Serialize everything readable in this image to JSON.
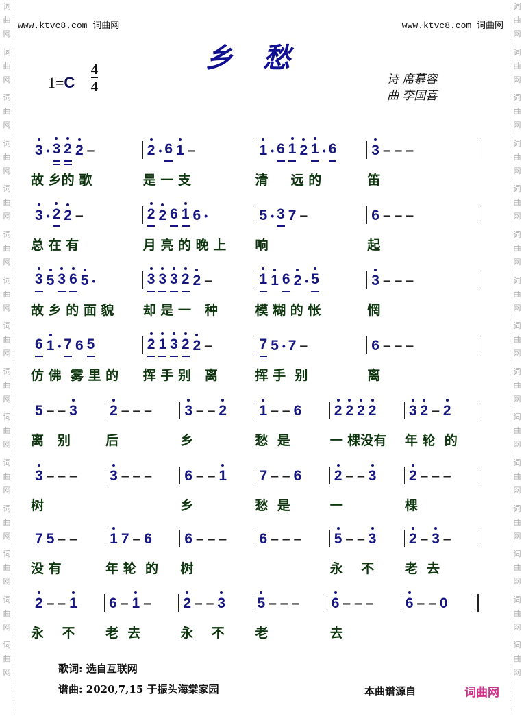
{
  "watermark": "词曲网",
  "site_left": "www.ktvc8.com 词曲网",
  "site_right": "www.ktvc8.com 词曲网",
  "title": "乡愁",
  "key": {
    "prefix": "1=",
    "tonic": "C"
  },
  "meter": {
    "top": "4",
    "bottom": "4"
  },
  "credits": {
    "lyrics": "诗 席慕容",
    "music": "曲 李国喜"
  },
  "colors": {
    "notes": "#161680",
    "lyrics": "#0e360e",
    "source_site": "#d0308a"
  },
  "notation_legend": "^ = high octave dot, _ = underline, = = double underline, . = augmentation dot, - = dash",
  "rows": [
    {
      "measures": [
        [
          "3^",
          ".",
          "3^=",
          "2^=",
          "2^",
          "-"
        ],
        [
          "2^",
          ".",
          "6_",
          "1^",
          "-"
        ],
        [
          "1^",
          ".",
          "6_",
          "1^_",
          "2^",
          "1^_",
          ".",
          "6_"
        ],
        [
          "3^",
          "-",
          "-",
          "-"
        ]
      ],
      "lyrics": [
        "故 乡的 歌",
        "是 一 支",
        "清     远 的",
        "笛"
      ]
    },
    {
      "measures": [
        [
          "3^",
          ".",
          "2^_",
          "2^",
          "-"
        ],
        [
          "2^_",
          "2^",
          "6_",
          "1^_",
          "6",
          "."
        ],
        [
          "5",
          ".",
          "3_",
          "7",
          "-"
        ],
        [
          "6",
          "-",
          "-",
          "-"
        ]
      ],
      "lyrics": [
        "总 在 有",
        "月 亮 的 晚 上",
        "响",
        "起"
      ]
    },
    {
      "measures": [
        [
          "3^_",
          "5^",
          "3^_",
          "6^_",
          "5^",
          "."
        ],
        [
          "3^_",
          "3^_",
          "3^_",
          "2^_",
          "2^",
          "-"
        ],
        [
          "1^_",
          "1^",
          "6_",
          "2^",
          ".",
          "5^_"
        ],
        [
          "3^",
          "-",
          "-",
          "-"
        ]
      ],
      "lyrics": [
        "故 乡 的 面 貌",
        "却 是 一   种",
        "模 糊 的 怅",
        "惘"
      ]
    },
    {
      "measures": [
        [
          "6_",
          "1^",
          ".",
          "7_",
          "6",
          "5_"
        ],
        [
          "2^_",
          "1^_",
          "3^_",
          "2^_",
          "2^",
          "-"
        ],
        [
          "7_",
          "5",
          ".",
          "7",
          "-"
        ],
        [
          "6",
          "-",
          "-",
          "-"
        ]
      ],
      "lyrics": [
        "仿 佛  雾 里 的",
        "挥 手 别   离",
        "挥 手  别",
        "离"
      ]
    },
    {
      "measures": [
        [
          "5",
          "-",
          "-",
          "3^"
        ],
        [
          "2^",
          "-",
          "-",
          "-"
        ],
        [
          "3^",
          "-",
          "-",
          "2^"
        ],
        [
          "1^",
          "-",
          "-",
          "6"
        ],
        [
          "2^",
          "2^",
          "2^",
          "2^"
        ],
        [
          "3^",
          "2^",
          "-",
          "2^"
        ]
      ],
      "lyrics": [
        "离   别",
        "后",
        "乡",
        "愁  是",
        "一 棵没有",
        "年 轮  的"
      ]
    },
    {
      "measures": [
        [
          "3^",
          "-",
          "-",
          "-"
        ],
        [
          "3^",
          "-",
          "-",
          "-"
        ],
        [
          "6",
          "-",
          "-",
          "1^"
        ],
        [
          "7",
          "-",
          "-",
          "6"
        ],
        [
          "2^",
          "-",
          "-",
          "3^"
        ],
        [
          "2^",
          "-",
          "-",
          "-"
        ]
      ],
      "lyrics": [
        "树",
        "",
        "乡",
        "愁  是",
        "一",
        "棵"
      ]
    },
    {
      "measures": [
        [
          "7",
          "5",
          "-",
          "-"
        ],
        [
          "1^",
          "7",
          "-",
          "6"
        ],
        [
          "6",
          "-",
          "-",
          "-"
        ],
        [
          "6",
          "-",
          "-",
          "-"
        ],
        [
          "5^",
          "-",
          "-",
          "3^"
        ],
        [
          "2^",
          "-",
          "3^",
          "-"
        ]
      ],
      "lyrics": [
        "没 有",
        "年 轮  的",
        "树",
        "",
        "永    不",
        "老  去"
      ]
    },
    {
      "measures": [
        [
          "2^",
          "-",
          "-",
          "1^"
        ],
        [
          "6",
          "-",
          "1^",
          "-"
        ],
        [
          "2^",
          "-",
          "-",
          "3^"
        ],
        [
          "5^",
          "-",
          "-",
          "-"
        ],
        [
          "6^",
          "-",
          "-",
          "-"
        ],
        [
          "6^",
          "-",
          "-",
          "0"
        ]
      ],
      "lyrics": [
        "永    不",
        "老  去",
        "永    不",
        "老",
        "去",
        ""
      ]
    }
  ],
  "footer": {
    "lyrics_source": "歌词: 选自互联网",
    "score_note": "谱曲: 2020,7,15 于振头海棠家园",
    "source_label": "本曲谱源自",
    "source_site": "词曲网"
  }
}
